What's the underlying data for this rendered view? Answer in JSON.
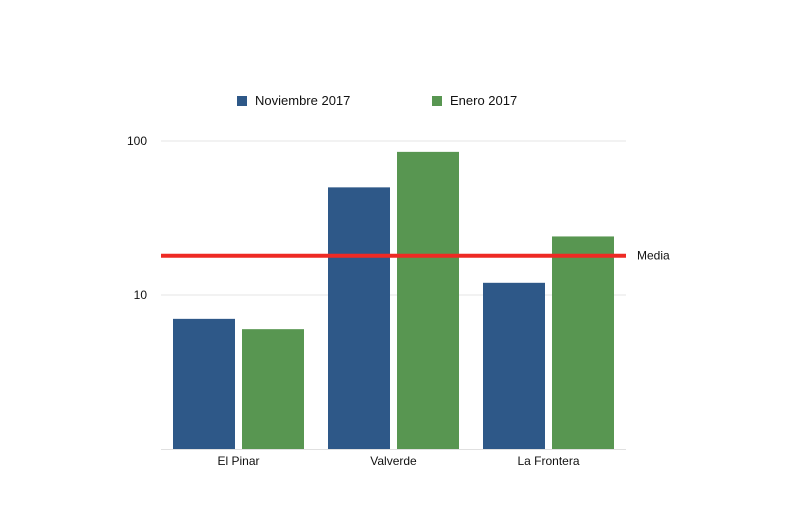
{
  "chart_data": {
    "type": "bar",
    "categories": [
      "El Pinar",
      "Valverde",
      "La Frontera"
    ],
    "series": [
      {
        "name": "Noviembre 2017",
        "color": "#2e5888",
        "values": [
          7,
          50,
          12
        ]
      },
      {
        "name": "Enero 2017",
        "color": "#589651",
        "values": [
          6,
          85,
          24
        ]
      }
    ],
    "yscale": "log",
    "ylim": [
      1,
      100
    ],
    "yticks": [
      {
        "value": 10,
        "label": "10"
      },
      {
        "value": 100,
        "label": "100"
      }
    ],
    "reference_line": {
      "label": "Media",
      "value": 18,
      "color": "#ee2a24"
    },
    "legend_position": "top",
    "grid": true
  }
}
